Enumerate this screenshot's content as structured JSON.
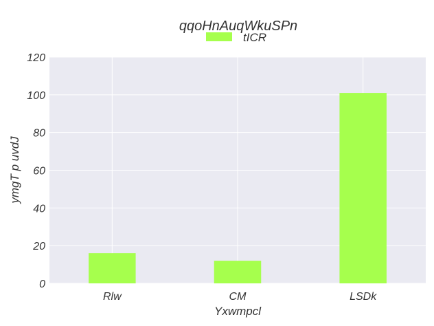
{
  "chart_data": {
    "type": "bar",
    "title": "qqoHnAuqWkuSPn",
    "xlabel": "Yxwmpcl",
    "ylabel": "ymgT   p uvdJ",
    "categories": [
      "Rlw",
      "CM",
      "LSDk"
    ],
    "series": [
      {
        "name": "tICR",
        "values": [
          16,
          12,
          101
        ],
        "color": "#a6ff4d"
      }
    ],
    "ylim": [
      0,
      120
    ],
    "yticks": [
      0,
      20,
      40,
      60,
      80,
      100,
      120
    ],
    "grid": true,
    "legend": "top-center",
    "background": "#eaeaf2",
    "grid_color": "#ffffff"
  }
}
